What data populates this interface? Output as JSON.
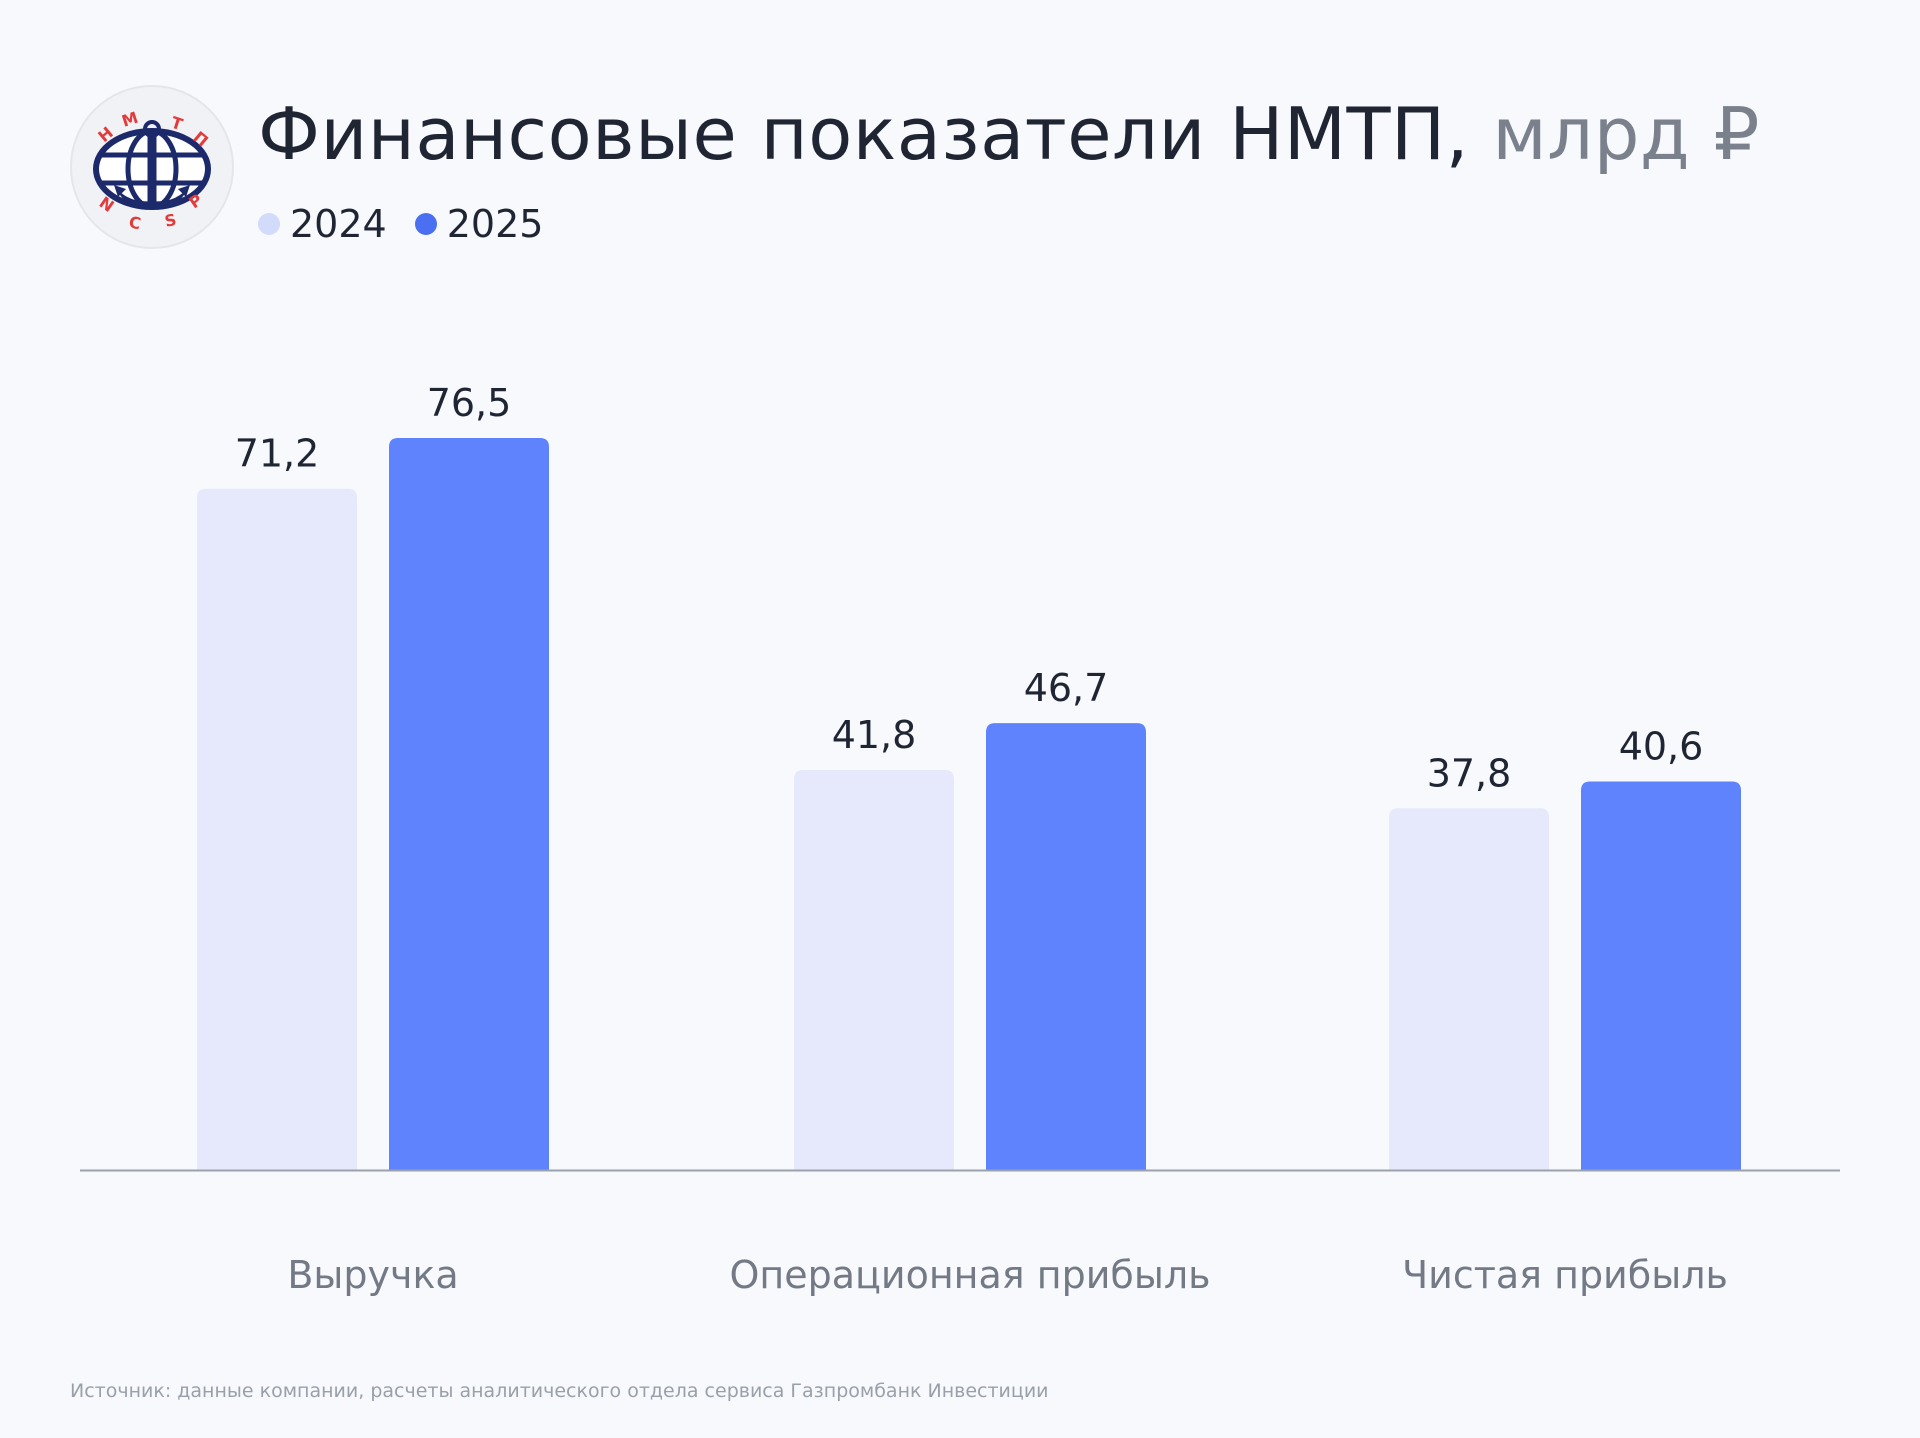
{
  "title": "Финансовые показатели НМТП,",
  "title_unit": "млрд ₽",
  "logo": {
    "name": "ncsp-logo",
    "text_top": "НМТП",
    "text_bottom": "NCSP"
  },
  "legend": [
    {
      "label": "2024",
      "color": "#d3dbfb"
    },
    {
      "label": "2025",
      "color": "#4a6ff0"
    }
  ],
  "chart_data": {
    "type": "bar",
    "categories": [
      "Выручка",
      "Операционная прибыль",
      "Чистая прибыль"
    ],
    "series": [
      {
        "name": "2024",
        "values": [
          71.2,
          41.8,
          37.8
        ],
        "labels": [
          "71,2",
          "41,8",
          "37,8"
        ],
        "color": "#e6e9fc"
      },
      {
        "name": "2025",
        "values": [
          76.5,
          46.7,
          40.6
        ],
        "labels": [
          "76,5",
          "46,7",
          "40,6"
        ],
        "color": "#5f83fd"
      }
    ],
    "title": "Финансовые показатели НМТП, млрд ₽",
    "ylim": [
      0,
      76.5
    ],
    "grid": false,
    "legend_position": "top-left"
  },
  "source": "Источник: данные компании, расчеты аналитического отдела сервиса Газпромбанк Инвестиции"
}
